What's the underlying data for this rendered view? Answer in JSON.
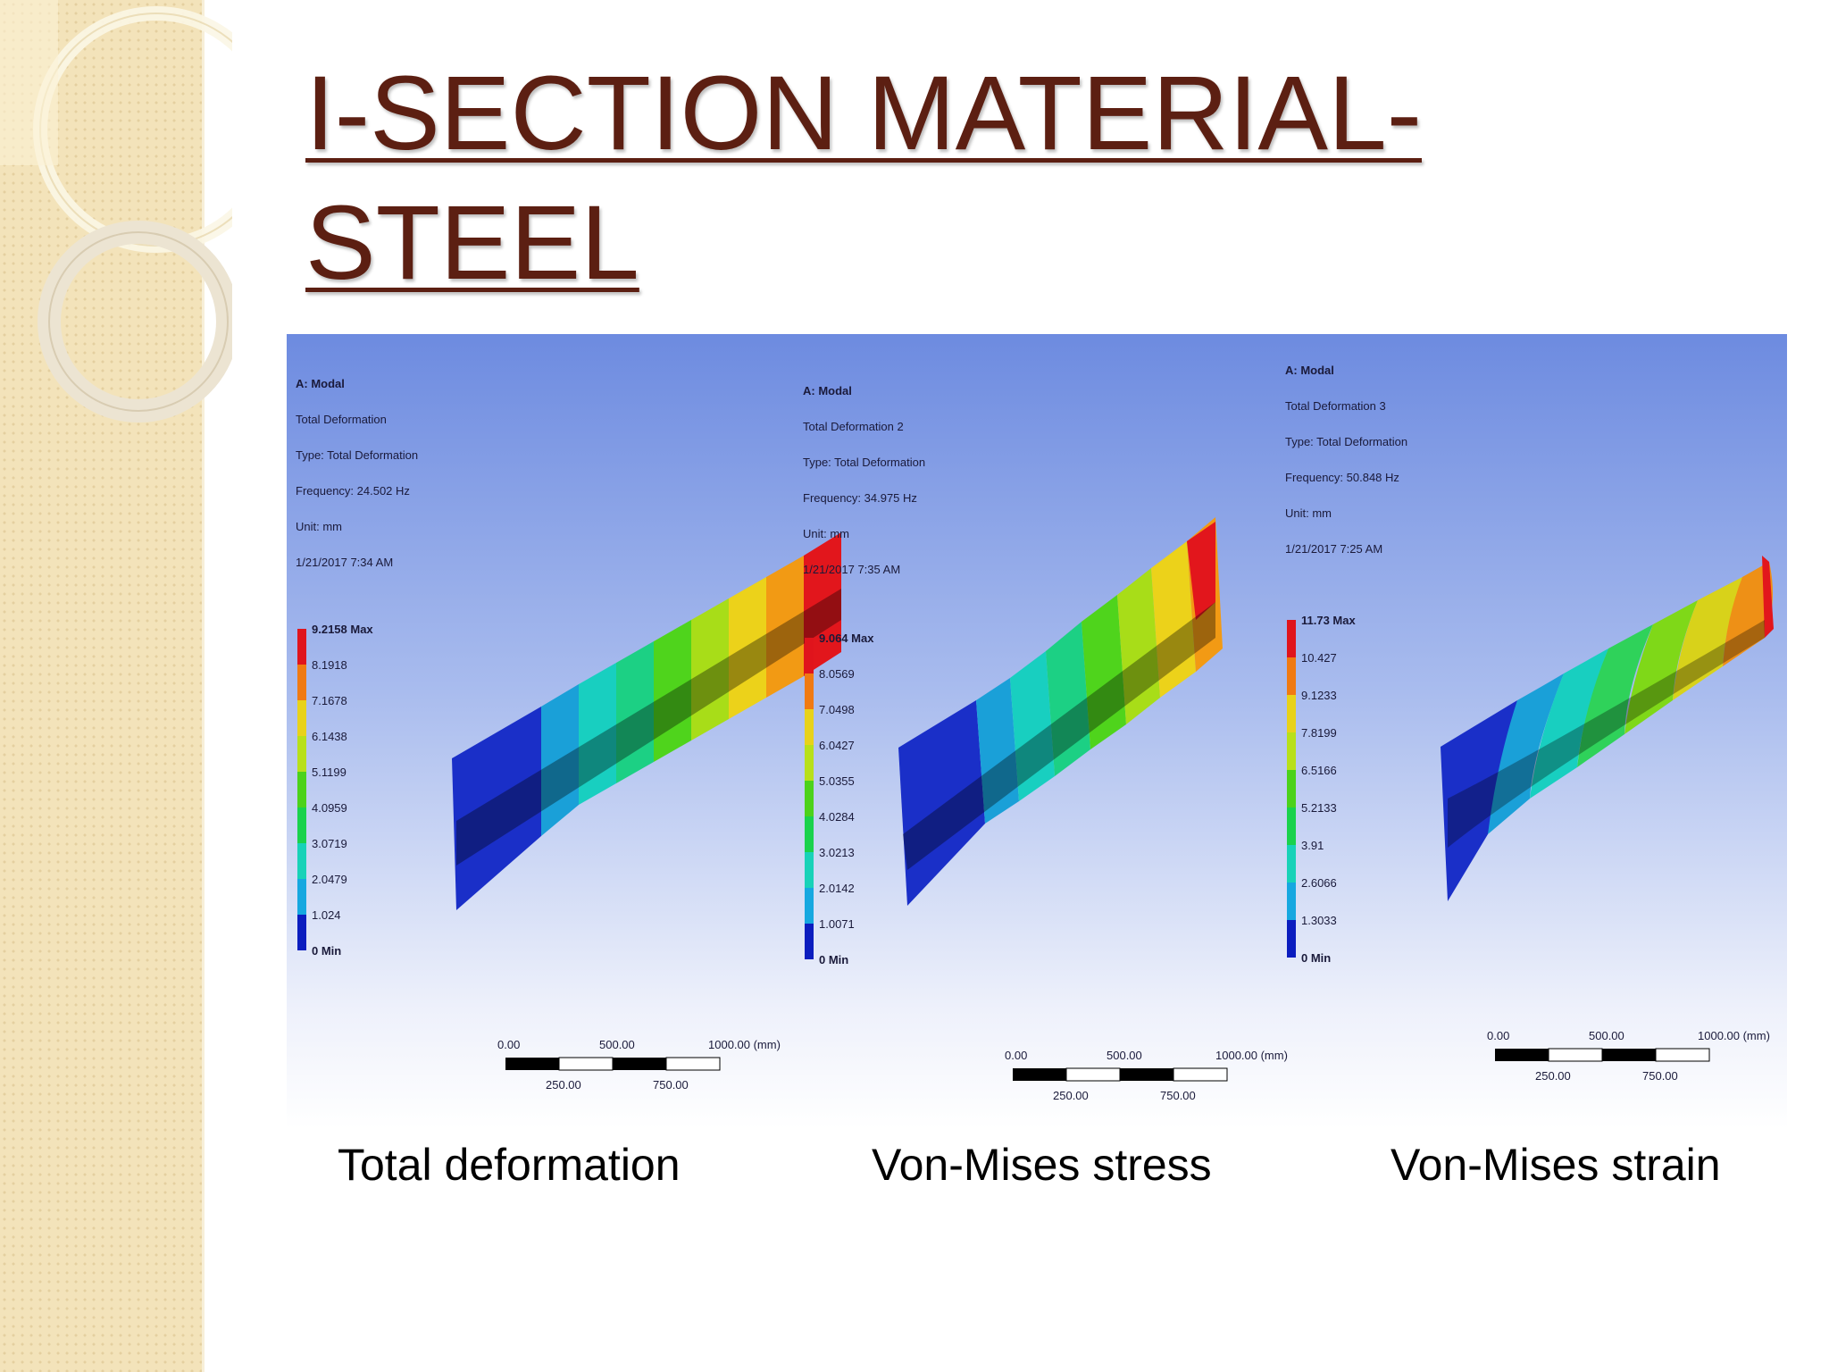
{
  "slide": {
    "title_line1": "I-SECTION MATERIAL-",
    "title_line2": "STEEL"
  },
  "panels": [
    {
      "caption": "Total deformation",
      "info": [
        "A: Modal",
        "Total Deformation",
        "Type: Total Deformation",
        "Frequency: 24.502 Hz",
        "Unit: mm",
        "1/21/2017 7:34 AM"
      ],
      "legend": [
        "9.2158 Max",
        "8.1918",
        "7.1678",
        "6.1438",
        "5.1199",
        "4.0959",
        "3.0719",
        "2.0479",
        "1.024",
        "0 Min"
      ],
      "scale": {
        "top": [
          "0.00",
          "500.00",
          "1000.00 (mm)"
        ],
        "bottom": [
          "250.00",
          "750.00"
        ]
      }
    },
    {
      "caption": "Von-Mises stress",
      "info": [
        "A: Modal",
        "Total Deformation 2",
        "Type: Total Deformation",
        "Frequency: 34.975 Hz",
        "Unit: mm",
        "1/21/2017 7:35 AM"
      ],
      "legend": [
        "9.064 Max",
        "8.0569",
        "7.0498",
        "6.0427",
        "5.0355",
        "4.0284",
        "3.0213",
        "2.0142",
        "1.0071",
        "0 Min"
      ],
      "scale": {
        "top": [
          "0.00",
          "500.00",
          "1000.00 (mm)"
        ],
        "bottom": [
          "250.00",
          "750.00"
        ]
      }
    },
    {
      "caption": "Von-Mises strain",
      "info": [
        "A: Modal",
        "Total Deformation 3",
        "Type: Total Deformation",
        "Frequency: 50.848 Hz",
        "Unit: mm",
        "1/21/2017 7:25 AM"
      ],
      "legend": [
        "11.73 Max",
        "10.427",
        "9.1233",
        "7.8199",
        "6.5166",
        "5.2133",
        "3.91",
        "2.6066",
        "1.3033",
        "0 Min"
      ],
      "scale": {
        "top": [
          "0.00",
          "500.00",
          "1000.00 (mm)"
        ],
        "bottom": [
          "250.00",
          "750.00"
        ]
      }
    }
  ],
  "colors": {
    "title": "#5c1f12",
    "legend_palette": [
      "#e0141c",
      "#f07a12",
      "#e8d21a",
      "#b8e01a",
      "#4cd21a",
      "#1ad24c",
      "#18d2b8",
      "#16a8e0",
      "#1650e6",
      "#0b1dbf"
    ]
  }
}
